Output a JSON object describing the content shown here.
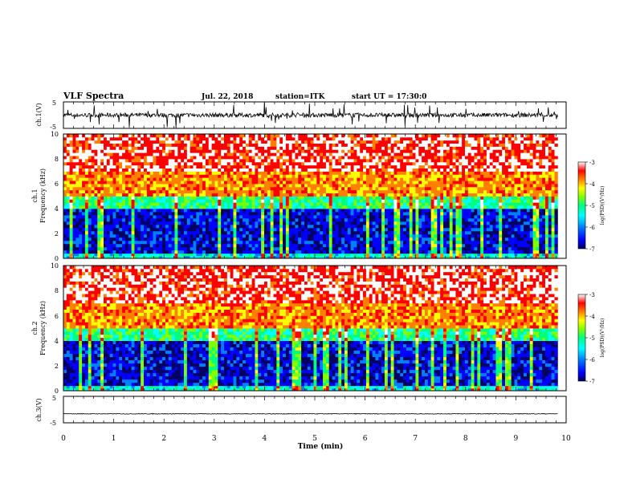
{
  "header": {
    "title": "VLF Spectra",
    "date": "Jul. 22, 2018",
    "station": "station=ITK",
    "start": "start UT = 17:30:0"
  },
  "colorbar": {
    "label": "log(PSD)(V²/Hz)",
    "ticks": [
      "-3",
      "-4",
      "-5",
      "-6",
      "-7"
    ],
    "colors": [
      "#000060",
      "#0000ff",
      "#0080ff",
      "#00ffff",
      "#00ff80",
      "#80ff00",
      "#ffff00",
      "#ff8000",
      "#ff0000",
      "#ffffff"
    ]
  },
  "chart_data": [
    {
      "type": "line",
      "title": "",
      "xlabel": "",
      "ylabel": "ch.1(V)",
      "ylim": [
        -5,
        5
      ],
      "yticks": [
        "5",
        "-5"
      ],
      "xlim": [
        0,
        10
      ],
      "baseline_v": 0,
      "trace_end_min": 9.83,
      "color": "#000000"
    },
    {
      "type": "heatmap",
      "title": "",
      "ylabel_top": "ch.1",
      "ylabel": "Frequency (kHz)",
      "xlim": [
        0,
        10
      ],
      "ylim": [
        0,
        10
      ],
      "yticks": [
        "0",
        "2",
        "4",
        "6",
        "8",
        "10"
      ],
      "data_end_min": 9.83,
      "clim": [
        -7,
        -3
      ],
      "band_levels": [
        {
          "kHz_from": 0,
          "kHz_to": 0.4,
          "level": -5.5
        },
        {
          "kHz_from": 0.4,
          "kHz_to": 4,
          "level": -6.5
        },
        {
          "kHz_from": 4,
          "kHz_to": 5,
          "level": -5.2
        },
        {
          "kHz_from": 5,
          "kHz_to": 7,
          "level": -4.0
        },
        {
          "kHz_from": 7,
          "kHz_to": 10,
          "level": -3.5
        }
      ]
    },
    {
      "type": "heatmap",
      "title": "",
      "ylabel_top": "ch.2",
      "ylabel": "Frequency (kHz)",
      "xlim": [
        0,
        10
      ],
      "ylim": [
        0,
        10
      ],
      "yticks": [
        "0",
        "2",
        "4",
        "6",
        "8",
        "10"
      ],
      "data_end_min": 9.83,
      "clim": [
        -7,
        -3
      ],
      "band_levels": [
        {
          "kHz_from": 0,
          "kHz_to": 0.4,
          "level": -5.5
        },
        {
          "kHz_from": 0.4,
          "kHz_to": 4,
          "level": -6.5
        },
        {
          "kHz_from": 4,
          "kHz_to": 5,
          "level": -5.2
        },
        {
          "kHz_from": 5,
          "kHz_to": 7,
          "level": -4.0
        },
        {
          "kHz_from": 7,
          "kHz_to": 10,
          "level": -3.5
        }
      ]
    },
    {
      "type": "line",
      "title": "",
      "xlabel": "Time (min)",
      "ylabel": "ch.3(V)",
      "ylim": [
        -5,
        5
      ],
      "yticks": [
        "5",
        "-5"
      ],
      "xlim": [
        0,
        10
      ],
      "xticks": [
        "0",
        "1",
        "2",
        "3",
        "4",
        "5",
        "6",
        "7",
        "8",
        "9",
        "10"
      ],
      "baseline_v": -1.6,
      "trace_end_min": 9.83,
      "color": "#000000"
    }
  ]
}
